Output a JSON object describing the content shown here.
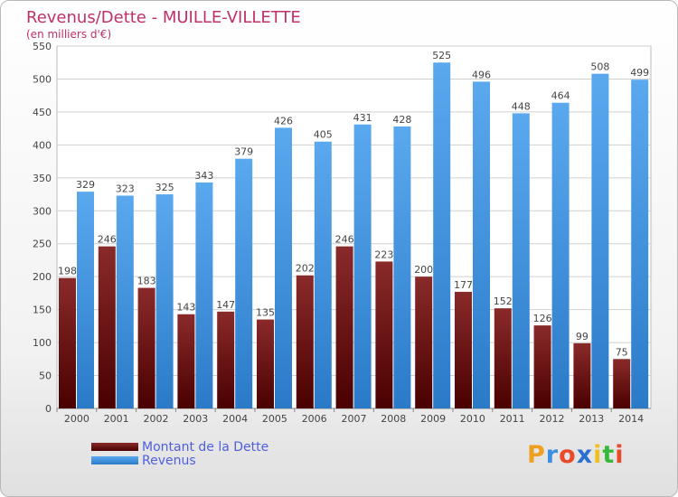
{
  "chart_data": {
    "type": "bar",
    "title": "Revenus/Dette - MUILLE-VILLETTE",
    "subtitle": "(en milliers d'€)",
    "categories": [
      "2000",
      "2001",
      "2002",
      "2003",
      "2004",
      "2005",
      "2006",
      "2007",
      "2008",
      "2009",
      "2010",
      "2011",
      "2012",
      "2013",
      "2014"
    ],
    "series": [
      {
        "name": "Montant de la Dette",
        "color": "#7a1a1a",
        "values": [
          198,
          246,
          183,
          143,
          147,
          135,
          202,
          246,
          223,
          200,
          177,
          152,
          126,
          99,
          75
        ]
      },
      {
        "name": "Revenus",
        "color": "#3d8fe0",
        "values": [
          329,
          323,
          325,
          343,
          379,
          426,
          405,
          431,
          428,
          525,
          496,
          448,
          464,
          508,
          499
        ]
      }
    ],
    "yticks": [
      0,
      50,
      100,
      150,
      200,
      250,
      300,
      350,
      400,
      450,
      500,
      550
    ],
    "ylim": [
      0,
      550
    ],
    "grid": true,
    "legend": "bottom-left"
  },
  "logo": {
    "text": "Proxiti",
    "letters": [
      {
        "ch": "P",
        "color": "#f0a020"
      },
      {
        "ch": "r",
        "color": "#3d8fe0"
      },
      {
        "ch": "o",
        "color": "#e84a2a"
      },
      {
        "ch": "x",
        "color": "#2a70d0"
      },
      {
        "ch": "i",
        "color": "#f0c020"
      },
      {
        "ch": "t",
        "color": "#38b838"
      },
      {
        "ch": "i",
        "color": "#e84a2a"
      }
    ]
  }
}
